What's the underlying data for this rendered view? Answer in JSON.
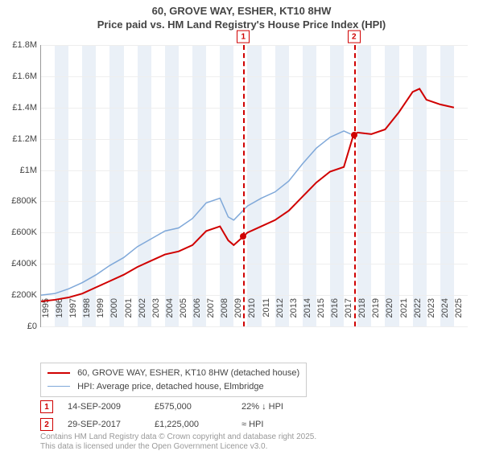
{
  "title_line1": "60, GROVE WAY, ESHER, KT10 8HW",
  "title_line2": "Price paid vs. HM Land Registry's House Price Index (HPI)",
  "chart": {
    "type": "line",
    "background_color": "#ffffff",
    "band_color": "#eaf0f7",
    "grid_color": "#eeeeee",
    "axis_color": "#999999",
    "x_start": 1995,
    "x_end": 2026,
    "x_ticks": [
      1995,
      1996,
      1997,
      1998,
      1999,
      2000,
      2001,
      2002,
      2003,
      2004,
      2005,
      2006,
      2007,
      2008,
      2009,
      2010,
      2011,
      2012,
      2013,
      2014,
      2015,
      2016,
      2017,
      2018,
      2019,
      2020,
      2021,
      2022,
      2023,
      2024,
      2025
    ],
    "y_min": 0,
    "y_max": 1800000,
    "y_ticks": [
      0,
      200000,
      400000,
      600000,
      800000,
      1000000,
      1200000,
      1400000,
      1600000,
      1800000
    ],
    "y_labels": [
      "£0",
      "£200K",
      "£400K",
      "£600K",
      "£800K",
      "£1M",
      "£1.2M",
      "£1.4M",
      "£1.6M",
      "£1.8M"
    ],
    "series": [
      {
        "name": "price_paid",
        "color": "#d00000",
        "width": 2,
        "data": [
          [
            1995,
            160000
          ],
          [
            1996,
            170000
          ],
          [
            1997,
            185000
          ],
          [
            1998,
            210000
          ],
          [
            1999,
            250000
          ],
          [
            2000,
            290000
          ],
          [
            2001,
            330000
          ],
          [
            2002,
            380000
          ],
          [
            2003,
            420000
          ],
          [
            2004,
            460000
          ],
          [
            2005,
            480000
          ],
          [
            2006,
            520000
          ],
          [
            2007,
            610000
          ],
          [
            2008,
            640000
          ],
          [
            2008.6,
            550000
          ],
          [
            2009,
            520000
          ],
          [
            2009.7,
            575000
          ],
          [
            2010,
            600000
          ],
          [
            2011,
            640000
          ],
          [
            2012,
            680000
          ],
          [
            2013,
            740000
          ],
          [
            2014,
            830000
          ],
          [
            2015,
            920000
          ],
          [
            2016,
            990000
          ],
          [
            2017,
            1020000
          ],
          [
            2017.7,
            1225000
          ],
          [
            2018,
            1240000
          ],
          [
            2019,
            1230000
          ],
          [
            2020,
            1260000
          ],
          [
            2021,
            1370000
          ],
          [
            2022,
            1500000
          ],
          [
            2022.5,
            1520000
          ],
          [
            2023,
            1450000
          ],
          [
            2024,
            1420000
          ],
          [
            2025,
            1400000
          ]
        ]
      },
      {
        "name": "hpi",
        "color": "#7fa8d9",
        "width": 1.5,
        "data": [
          [
            1995,
            200000
          ],
          [
            1996,
            210000
          ],
          [
            1997,
            240000
          ],
          [
            1998,
            280000
          ],
          [
            1999,
            330000
          ],
          [
            2000,
            390000
          ],
          [
            2001,
            440000
          ],
          [
            2002,
            510000
          ],
          [
            2003,
            560000
          ],
          [
            2004,
            610000
          ],
          [
            2005,
            630000
          ],
          [
            2006,
            690000
          ],
          [
            2007,
            790000
          ],
          [
            2008,
            820000
          ],
          [
            2008.6,
            700000
          ],
          [
            2009,
            680000
          ],
          [
            2010,
            770000
          ],
          [
            2011,
            820000
          ],
          [
            2012,
            860000
          ],
          [
            2013,
            930000
          ],
          [
            2014,
            1040000
          ],
          [
            2015,
            1140000
          ],
          [
            2016,
            1210000
          ],
          [
            2017,
            1250000
          ],
          [
            2017.5,
            1230000
          ]
        ]
      }
    ],
    "sale_markers": [
      {
        "n": 1,
        "x": 2009.7,
        "y": 575000
      },
      {
        "n": 2,
        "x": 2017.74,
        "y": 1225000
      }
    ]
  },
  "legend": {
    "items": [
      {
        "color": "#d00000",
        "width": 2,
        "label": "60, GROVE WAY, ESHER, KT10 8HW (detached house)"
      },
      {
        "color": "#7fa8d9",
        "width": 1.5,
        "label": "HPI: Average price, detached house, Elmbridge"
      }
    ]
  },
  "sales": [
    {
      "n": "1",
      "date": "14-SEP-2009",
      "price": "£575,000",
      "delta": "22% ↓ HPI"
    },
    {
      "n": "2",
      "date": "29-SEP-2017",
      "price": "£1,225,000",
      "delta": "≈ HPI"
    }
  ],
  "footer_line1": "Contains HM Land Registry data © Crown copyright and database right 2025.",
  "footer_line2": "This data is licensed under the Open Government Licence v3.0."
}
